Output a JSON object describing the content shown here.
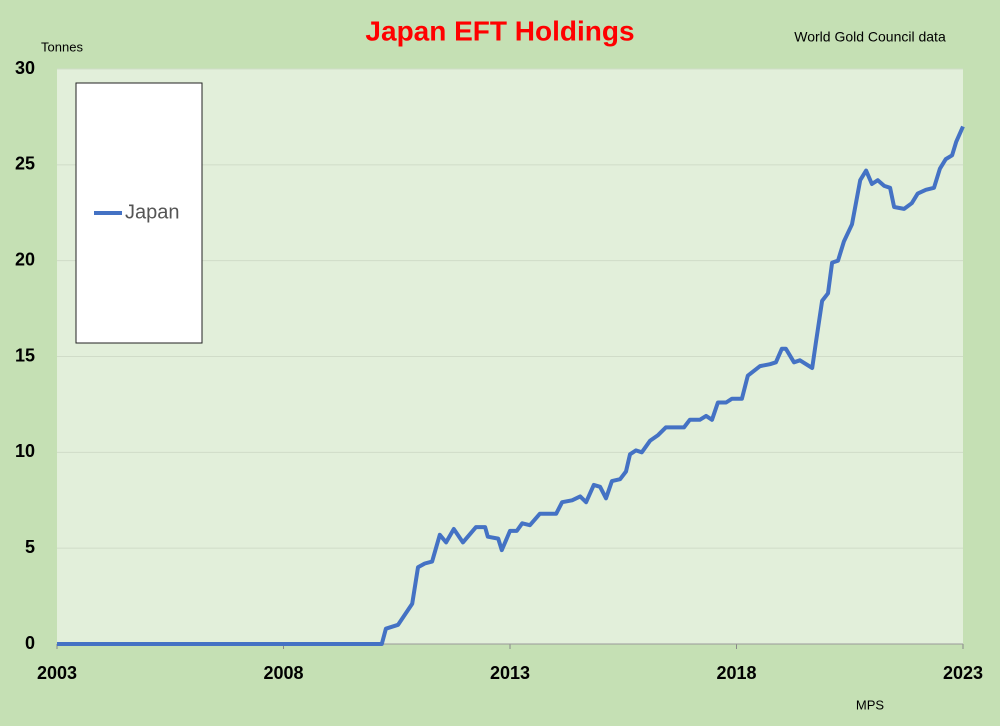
{
  "chart_data": {
    "type": "line",
    "title": "Japan EFT Holdings",
    "source": "World Gold Council data",
    "credit": "MPS",
    "y_label": "Tonnes",
    "x": [
      2003.0,
      2010.17,
      2010.26,
      2010.53,
      2010.84,
      2010.97,
      2011.12,
      2011.28,
      2011.45,
      2011.59,
      2011.76,
      2011.96,
      2012.25,
      2012.45,
      2012.51,
      2012.74,
      2012.82,
      2013.0,
      2013.15,
      2013.27,
      2013.44,
      2013.66,
      2013.88,
      2014.02,
      2014.15,
      2014.37,
      2014.55,
      2014.68,
      2014.85,
      2014.99,
      2015.12,
      2015.25,
      2015.43,
      2015.56,
      2015.65,
      2015.78,
      2015.91,
      2016.09,
      2016.27,
      2016.44,
      2016.84,
      2016.97,
      2017.19,
      2017.33,
      2017.46,
      2017.59,
      2017.77,
      2017.9,
      2018.12,
      2018.25,
      2018.52,
      2018.74,
      2018.87,
      2019.0,
      2019.09,
      2019.27,
      2019.4,
      2019.67,
      2019.75,
      2019.89,
      2020.02,
      2020.11,
      2020.24,
      2020.37,
      2020.55,
      2020.73,
      2020.86,
      2020.99,
      2021.12,
      2021.26,
      2021.39,
      2021.48,
      2021.7,
      2021.87,
      2022.0,
      2022.18,
      2022.36,
      2022.49,
      2022.62,
      2022.76,
      2022.85,
      2023.0
    ],
    "series": [
      {
        "name": "Japan",
        "color": "#4472c4",
        "values": [
          0,
          0,
          0.8,
          1.0,
          2.1,
          4.0,
          4.2,
          4.3,
          5.7,
          5.3,
          6.0,
          5.3,
          6.1,
          6.1,
          5.6,
          5.5,
          4.9,
          5.9,
          5.9,
          6.3,
          6.2,
          6.8,
          6.8,
          6.8,
          7.4,
          7.5,
          7.7,
          7.4,
          8.3,
          8.2,
          7.6,
          8.5,
          8.6,
          9.0,
          9.9,
          10.1,
          10.0,
          10.6,
          10.9,
          11.3,
          11.3,
          11.7,
          11.7,
          11.9,
          11.7,
          12.6,
          12.6,
          12.8,
          12.8,
          14.0,
          14.5,
          14.6,
          14.7,
          15.4,
          15.4,
          14.7,
          14.8,
          14.4,
          15.7,
          17.9,
          18.3,
          19.9,
          20.0,
          21.0,
          21.9,
          24.2,
          24.7,
          24.0,
          24.2,
          23.9,
          23.8,
          22.8,
          22.7,
          23.0,
          23.5,
          23.7,
          23.8,
          24.8,
          25.3,
          25.5,
          26.2,
          27.0
        ]
      }
    ],
    "xlim": [
      2003,
      2023
    ],
    "xticks": [
      2003,
      2008,
      2013,
      2018,
      2023
    ],
    "ylim": [
      0,
      30
    ],
    "yticks": [
      0,
      5,
      10,
      15,
      20,
      25,
      30
    ],
    "grid": true
  }
}
